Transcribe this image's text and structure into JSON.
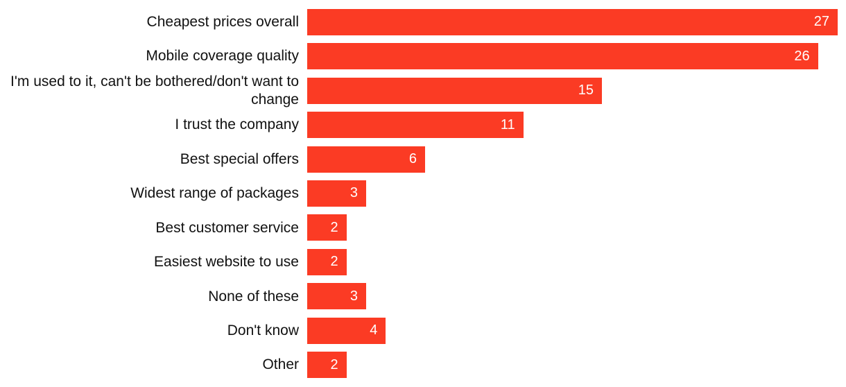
{
  "chart_data": {
    "type": "bar",
    "orientation": "horizontal",
    "title": "",
    "xlabel": "",
    "ylabel": "",
    "xlim": [
      0,
      27
    ],
    "grid": false,
    "legend": false,
    "bar_color": "#FB3B24",
    "value_label_color": "#FFFFFF",
    "categories": [
      "Cheapest prices overall",
      "Mobile coverage quality",
      "I'm used to it, can't be bothered/don't want to change",
      "I trust the company",
      "Best special offers",
      "Widest range of packages",
      "Best customer service",
      "Easiest website to use",
      "None of these",
      "Don't know",
      "Other"
    ],
    "values": [
      27,
      26,
      15,
      11,
      6,
      3,
      2,
      2,
      3,
      4,
      2
    ]
  }
}
